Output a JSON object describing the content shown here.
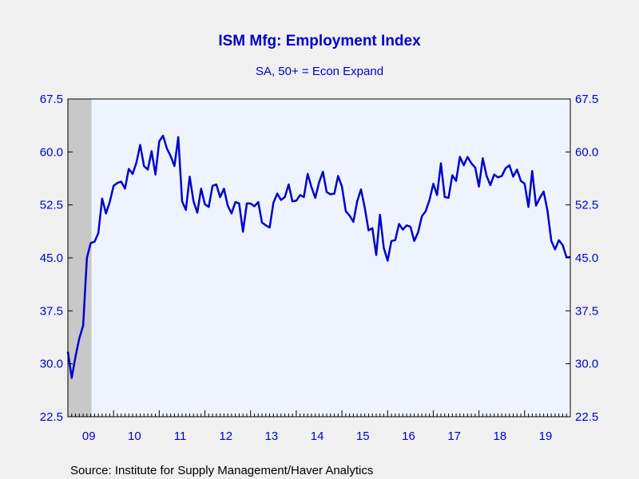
{
  "chart_data": {
    "type": "line",
    "title": "ISM Mfg: Employment Index",
    "subtitle": "SA, 50+ = Econ Expand",
    "source": "Source:  Institute for Supply Management/Haver Analytics",
    "ylim": [
      22.5,
      67.5
    ],
    "yticks": [
      "67.5",
      "60.0",
      "52.5",
      "45.0",
      "37.5",
      "30.0",
      "22.5"
    ],
    "ytick_values": [
      67.5,
      60.0,
      52.5,
      45.0,
      37.5,
      30.0,
      22.5
    ],
    "x_start_year": 2009,
    "x_months": 133,
    "xtick_labels": [
      "09",
      "10",
      "11",
      "12",
      "13",
      "14",
      "15",
      "16",
      "17",
      "18",
      "19"
    ],
    "grid": false,
    "colors": {
      "line": "#0000cc",
      "plot_bg": "#eef4ff",
      "recession": "#c8c8c8",
      "text": "#0000cc"
    },
    "recession_months": [
      0,
      6
    ],
    "series": [
      {
        "values": [
          31.7,
          28.0,
          31.0,
          33.6,
          35.4,
          45.0,
          47.1,
          47.3,
          48.5,
          53.4,
          51.3,
          52.9,
          55.2,
          55.6,
          55.8,
          54.8,
          57.6,
          56.9,
          58.5,
          61.0,
          58.0,
          57.5,
          60.1,
          56.8,
          61.5,
          62.3,
          60.5,
          59.4,
          58.0,
          62.1,
          53.0,
          51.8,
          56.5,
          53.0,
          51.4,
          54.8,
          52.6,
          52.2,
          55.2,
          55.4,
          53.6,
          54.8,
          52.4,
          51.3,
          52.9,
          52.7,
          48.7,
          52.7,
          52.7,
          52.3,
          52.9,
          50.0,
          49.6,
          49.3,
          52.8,
          54.1,
          53.2,
          53.6,
          55.4,
          53.0,
          53.1,
          53.9,
          53.6,
          56.9,
          55.0,
          53.5,
          55.7,
          57.2,
          54.3,
          54.0,
          54.1,
          56.6,
          55.1,
          51.6,
          51.0,
          50.1,
          53.0,
          54.7,
          52.1,
          48.9,
          49.2,
          45.4,
          51.1,
          46.4,
          44.6,
          47.4,
          47.5,
          49.8,
          49.0,
          49.6,
          49.4,
          47.4,
          48.6,
          50.9,
          51.6,
          53.2,
          55.5,
          53.9,
          58.4,
          53.6,
          53.5,
          56.7,
          55.9,
          59.3,
          58.1,
          59.3,
          58.4,
          57.8,
          55.1,
          59.1,
          56.6,
          55.3,
          56.8,
          56.4,
          56.6,
          57.7,
          58.1,
          56.5,
          57.5,
          55.9,
          55.5,
          52.2,
          57.3,
          52.4,
          53.5,
          54.4,
          51.7,
          47.4,
          46.2,
          47.5,
          46.8,
          45.1,
          45.1
        ]
      }
    ]
  }
}
